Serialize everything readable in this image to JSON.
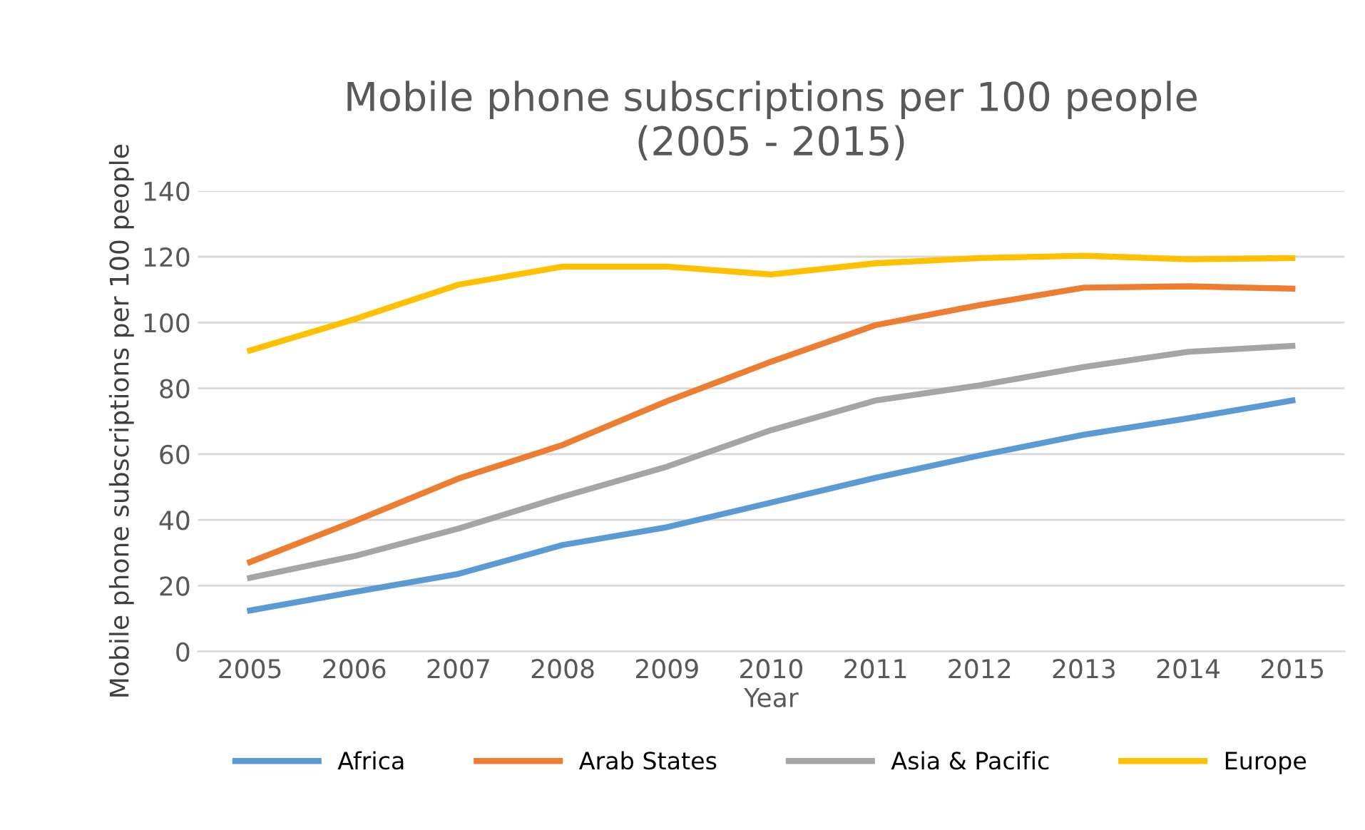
{
  "chart_data": {
    "type": "line",
    "title": "Mobile phone subscriptions per 100 people\n(2005 - 2015)",
    "xlabel": "Year",
    "ylabel": "Mobile phone subscriptions per 100 people",
    "categories": [
      "2005",
      "2006",
      "2007",
      "2008",
      "2009",
      "2010",
      "2011",
      "2012",
      "2013",
      "2014",
      "2015"
    ],
    "series": [
      {
        "name": "Africa",
        "color": "#5b9bd5",
        "values": [
          12.5,
          18.1,
          23.6,
          32.4,
          37.8,
          45.3,
          52.8,
          59.6,
          65.9,
          70.9,
          76.3
        ]
      },
      {
        "name": "Arab States",
        "color": "#ed7d31",
        "values": [
          27.2,
          39.6,
          52.6,
          62.8,
          76.1,
          88.1,
          99.2,
          105.3,
          110.6,
          111,
          110.3
        ]
      },
      {
        "name": "Asia & Pacific",
        "color": "#a5a5a5",
        "values": [
          22.4,
          29,
          37.4,
          47.1,
          56.2,
          67.3,
          76.3,
          80.9,
          86.5,
          91.1,
          92.9
        ]
      },
      {
        "name": "Europe",
        "color": "#ffc000",
        "values": [
          91.5,
          101,
          111.5,
          117,
          117,
          114.6,
          118,
          119.6,
          120.3,
          119.2,
          119.6
        ]
      }
    ],
    "ylim": [
      0,
      140
    ],
    "yticks": [
      0,
      20,
      40,
      60,
      80,
      100,
      120,
      140
    ],
    "grid": "y",
    "legend": "bottom",
    "marker": "none",
    "line_style": "solid"
  }
}
